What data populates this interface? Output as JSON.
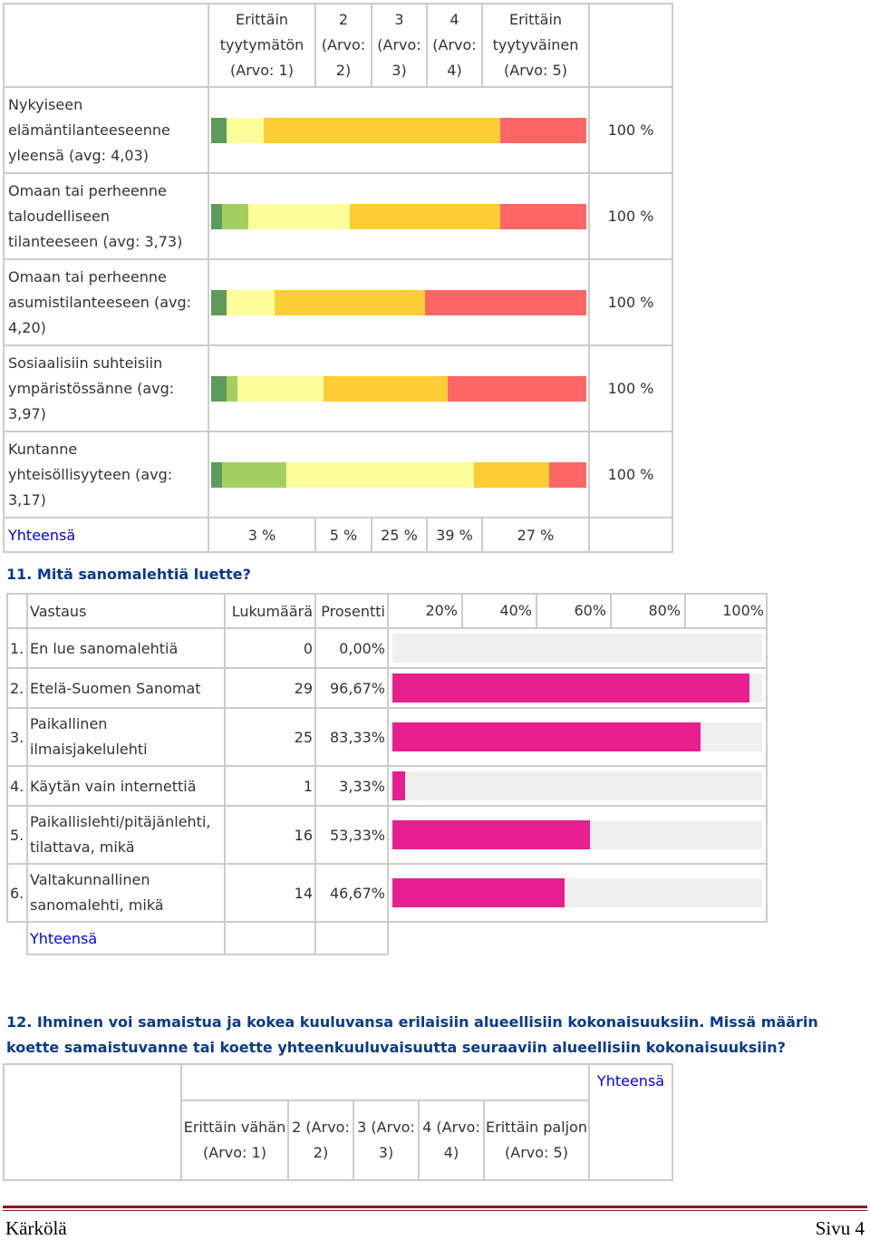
{
  "table1": {
    "columns": [
      "Erittäin tyytymätön (Arvo: 1)",
      "2 (Arvo: 2)",
      "3 (Arvo: 3)",
      "4 (Arvo: 4)",
      "Erittäin tyytyväinen (Arvo: 5)"
    ],
    "colors": [
      "#5d9b5d",
      "#a3cf62",
      "#fdfd9b",
      "#fdcd35",
      "#fe6666"
    ],
    "rows": [
      {
        "label": "Nykyiseen elämäntilanteeseenne yleensä (avg: 4,03)",
        "shares": [
          4,
          0,
          10,
          63,
          23
        ],
        "total": "100 %"
      },
      {
        "label": "Omaan tai perheenne taloudelliseen tilanteeseen (avg: 3,73)",
        "shares": [
          3,
          7,
          27,
          40,
          23
        ],
        "total": "100 %"
      },
      {
        "label": "Omaan tai perheenne asumistilanteeseen (avg: 4,20)",
        "shares": [
          4,
          0,
          13,
          40,
          43
        ],
        "total": "100 %"
      },
      {
        "label": "Sosiaalisiin suhteisiin ympäristössänne (avg: 3,97)",
        "shares": [
          4,
          3,
          23,
          33,
          37
        ],
        "total": "100 %"
      },
      {
        "label": "Kuntanne yhteisöllisyyteen (avg: 3,17)",
        "shares": [
          3,
          17,
          50,
          20,
          10
        ],
        "total": "100 %"
      }
    ],
    "total_label": "Yhteensä",
    "totals": [
      "3 %",
      "5 %",
      "25 %",
      "39 %",
      "27 %"
    ]
  },
  "q11": {
    "title": "11. Mitä sanomalehtiä luette?",
    "headers": {
      "answer": "Vastaus",
      "count": "Lukumäärä",
      "percent": "Prosentti"
    },
    "scale": [
      "20%",
      "40%",
      "60%",
      "80%",
      "100%"
    ],
    "rows": [
      {
        "num": "1.",
        "answer": "En lue sanomalehtiä",
        "count": "0",
        "percent": "0,00%",
        "value": 0
      },
      {
        "num": "2.",
        "answer": "Etelä-Suomen Sanomat",
        "count": "29",
        "percent": "96,67%",
        "value": 96.67
      },
      {
        "num": "3.",
        "answer": "Paikallinen ilmaisjakelulehti",
        "count": "25",
        "percent": "83,33%",
        "value": 83.33
      },
      {
        "num": "4.",
        "answer": "Käytän vain internettiä",
        "count": "1",
        "percent": "3,33%",
        "value": 3.33
      },
      {
        "num": "5.",
        "answer": "Paikallislehti/pitäjänlehti, tilattava, mikä",
        "count": "16",
        "percent": "53,33%",
        "value": 53.33
      },
      {
        "num": "6.",
        "answer": "Valtakunnallinen sanomalehti, mikä",
        "count": "14",
        "percent": "46,67%",
        "value": 46.67
      }
    ],
    "total_label": "Yhteensä",
    "bar_color": "#e71f8f"
  },
  "q12": {
    "title": "12. Ihminen voi samaistua ja kokea kuuluvansa erilaisiin alueellisiin kokonaisuuksiin. Missä määrin koette samaistuvanne tai koette yhteenkuuluvaisuutta seuraaviin alueellisiin kokonaisuuksiin?",
    "columns": [
      "Erittäin vähän (Arvo: 1)",
      "2 (Arvo: 2)",
      "3 (Arvo: 3)",
      "4 (Arvo: 4)",
      "Erittäin paljon (Arvo: 5)"
    ],
    "total_col": "Yhteensä"
  },
  "footer": {
    "left": "Kärkölä",
    "right": "Sivu 4"
  }
}
